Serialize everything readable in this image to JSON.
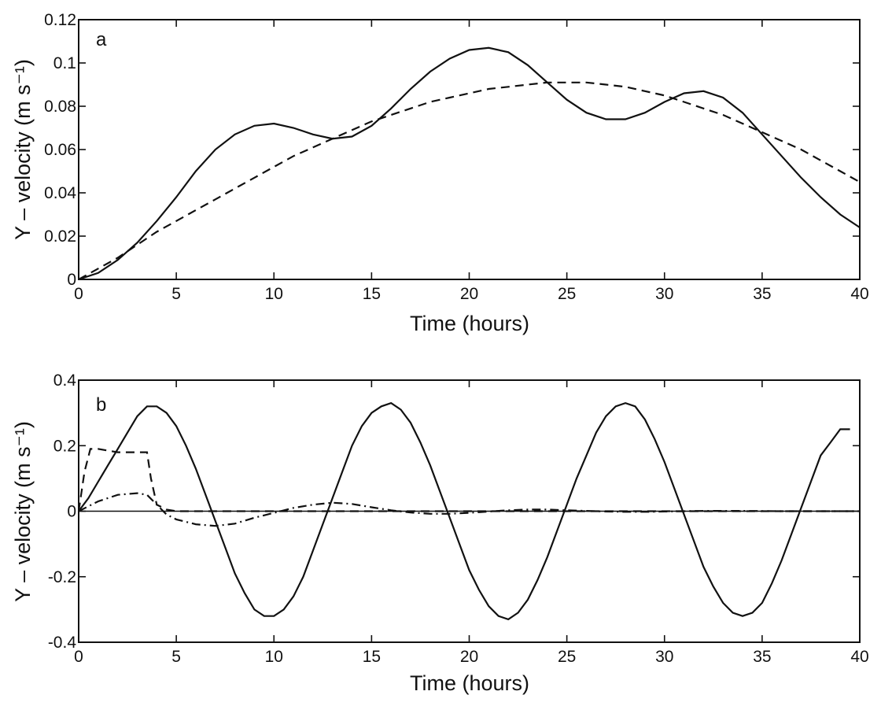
{
  "chart_data": [
    {
      "type": "line",
      "panel_label": "a",
      "xlabel": "Time (hours)",
      "ylabel": "Y – velocity (m s⁻¹)",
      "xlim": [
        0,
        40
      ],
      "ylim": [
        0,
        0.12
      ],
      "xticks": [
        "0",
        "5",
        "10",
        "15",
        "20",
        "25",
        "30",
        "35",
        "40"
      ],
      "yticks": [
        "0",
        "0.02",
        "0.04",
        "0.06",
        "0.08",
        "0.1",
        "0.12"
      ],
      "grid": false,
      "x": [
        0,
        1,
        2,
        3,
        4,
        5,
        6,
        7,
        8,
        9,
        10,
        11,
        12,
        13,
        14,
        15,
        16,
        17,
        18,
        19,
        20,
        21,
        22,
        23,
        24,
        25,
        26,
        27,
        28,
        29,
        30,
        31,
        32,
        33,
        34,
        35,
        36,
        37,
        38,
        39,
        40
      ],
      "series": [
        {
          "style": "solid",
          "values": [
            0,
            0.003,
            0.009,
            0.017,
            0.027,
            0.038,
            0.05,
            0.06,
            0.067,
            0.071,
            0.072,
            0.07,
            0.067,
            0.065,
            0.066,
            0.071,
            0.079,
            0.088,
            0.096,
            0.102,
            0.106,
            0.107,
            0.105,
            0.099,
            0.091,
            0.083,
            0.077,
            0.074,
            0.074,
            0.077,
            0.082,
            0.086,
            0.087,
            0.084,
            0.077,
            0.067,
            0.057,
            0.047,
            0.038,
            0.03,
            0.024
          ]
        },
        {
          "style": "dashed",
          "values": [
            0,
            0.005,
            0.01,
            0.016,
            0.022,
            0.027,
            0.032,
            0.037,
            0.042,
            0.047,
            0.052,
            0.057,
            0.061,
            0.065,
            0.069,
            0.073,
            0.076,
            0.079,
            0.082,
            0.084,
            0.086,
            0.088,
            0.089,
            0.09,
            0.091,
            0.091,
            0.091,
            0.09,
            0.089,
            0.087,
            0.085,
            0.082,
            0.079,
            0.076,
            0.072,
            0.068,
            0.064,
            0.06,
            0.055,
            0.05,
            0.045
          ]
        }
      ]
    },
    {
      "type": "line",
      "panel_label": "b",
      "xlabel": "Time (hours)",
      "ylabel": "Y – velocity (m s⁻¹)",
      "xlim": [
        0,
        40
      ],
      "ylim": [
        -0.4,
        0.4
      ],
      "xticks": [
        "0",
        "5",
        "10",
        "15",
        "20",
        "25",
        "30",
        "35",
        "40"
      ],
      "yticks": [
        "-0.4",
        "-0.2",
        "0",
        "0.2",
        "0.4"
      ],
      "grid": false,
      "series": [
        {
          "style": "solid",
          "x": [
            0,
            0.5,
            1,
            1.5,
            2,
            2.5,
            3,
            3.5,
            4,
            4.5,
            5,
            5.5,
            6,
            6.5,
            7,
            7.5,
            8,
            8.5,
            9,
            9.5,
            10,
            10.5,
            11,
            11.5,
            12,
            12.5,
            13,
            13.5,
            14,
            14.5,
            15,
            15.5,
            16,
            16.5,
            17,
            17.5,
            18,
            18.5,
            19,
            19.5,
            20,
            20.5,
            21,
            21.5,
            22,
            22.5,
            23,
            23.5,
            24,
            24.5,
            25,
            25.5,
            26,
            26.5,
            27,
            27.5,
            28,
            28.5,
            29,
            29.5,
            30,
            30.5,
            31,
            31.5,
            32,
            32.5,
            33,
            33.5,
            34,
            34.5,
            35,
            35.5,
            36,
            36.5,
            37,
            37.5,
            38,
            38.5,
            39,
            39.5
          ],
          "values": [
            0,
            0.04,
            0.09,
            0.14,
            0.19,
            0.24,
            0.29,
            0.32,
            0.32,
            0.3,
            0.26,
            0.2,
            0.13,
            0.05,
            -0.03,
            -0.11,
            -0.19,
            -0.25,
            -0.3,
            -0.32,
            -0.32,
            -0.3,
            -0.26,
            -0.2,
            -0.12,
            -0.04,
            0.04,
            0.12,
            0.2,
            0.26,
            0.3,
            0.32,
            0.33,
            0.31,
            0.27,
            0.21,
            0.14,
            0.06,
            -0.02,
            -0.1,
            -0.18,
            -0.24,
            -0.29,
            -0.32,
            -0.33,
            -0.31,
            -0.27,
            -0.21,
            -0.14,
            -0.06,
            0.02,
            0.1,
            0.17,
            0.24,
            0.29,
            0.32,
            0.33,
            0.32,
            0.28,
            0.22,
            0.15,
            0.07,
            -0.01,
            -0.09,
            -0.17,
            -0.23,
            -0.28,
            -0.31,
            -0.32,
            -0.31,
            -0.28,
            -0.22,
            -0.15,
            -0.07,
            0.01,
            0.09,
            0.17,
            0.21,
            0.25,
            0.25
          ]
        },
        {
          "style": "dashed",
          "x": [
            0,
            0.3,
            0.6,
            1.0,
            1.5,
            2.0,
            2.5,
            3.0,
            3.5,
            3.7,
            4.0,
            4.5,
            5,
            6,
            8,
            10,
            15,
            20,
            25,
            30,
            35,
            40
          ],
          "values": [
            0,
            0.12,
            0.19,
            0.19,
            0.185,
            0.18,
            0.18,
            0.18,
            0.18,
            0.1,
            0.02,
            0.005,
            0,
            0,
            0,
            0,
            0,
            0,
            0,
            0,
            0,
            0
          ]
        },
        {
          "style": "dashdot",
          "x": [
            0,
            1,
            2,
            3,
            3.5,
            4,
            4.5,
            5,
            6,
            7,
            8,
            9,
            10,
            11,
            12,
            13,
            14,
            15,
            16,
            17,
            18,
            19,
            20,
            21,
            22,
            23,
            24,
            25,
            26,
            27,
            28,
            29,
            30,
            32,
            34,
            36,
            38,
            40
          ],
          "values": [
            0,
            0.03,
            0.05,
            0.055,
            0.05,
            0.02,
            -0.01,
            -0.025,
            -0.04,
            -0.045,
            -0.038,
            -0.02,
            -0.005,
            0.01,
            0.02,
            0.026,
            0.022,
            0.012,
            0.003,
            -0.004,
            -0.008,
            -0.008,
            -0.005,
            -0.001,
            0.003,
            0.005,
            0.005,
            0.003,
            0.001,
            -0.001,
            -0.002,
            -0.002,
            -0.001,
            0.001,
            0.001,
            0,
            0,
            0
          ]
        }
      ]
    }
  ]
}
